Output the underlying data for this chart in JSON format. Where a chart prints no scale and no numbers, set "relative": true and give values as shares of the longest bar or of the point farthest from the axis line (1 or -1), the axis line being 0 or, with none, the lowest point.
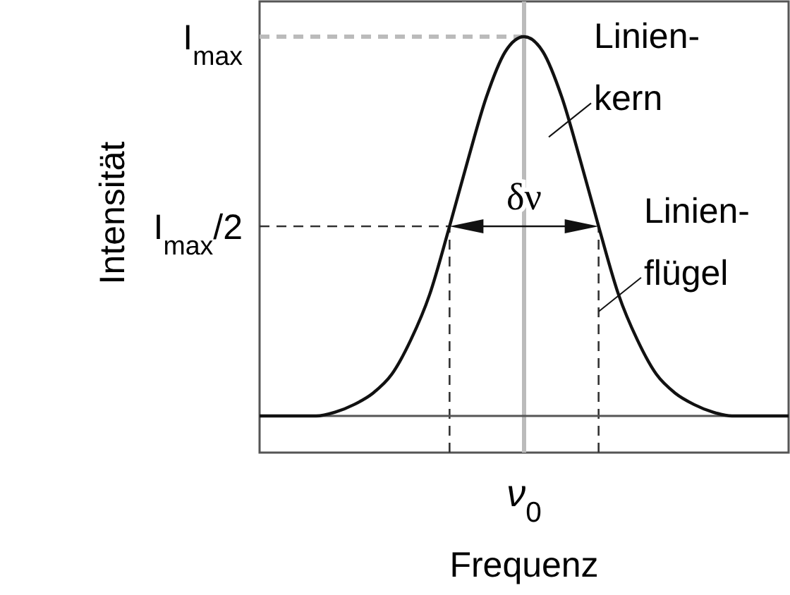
{
  "chart_data": {
    "type": "line",
    "relative": true,
    "xlabel": "Frequenz",
    "ylabel": "Intensität",
    "categories": [
      null,
      null,
      null,
      null,
      null,
      null,
      null,
      null,
      null,
      null,
      null,
      null,
      null,
      null,
      null,
      null,
      null,
      null,
      null,
      null,
      null,
      null,
      null,
      null,
      null,
      null,
      null,
      null,
      null
    ],
    "series": [
      {
        "color": "#111111",
        "values": [
          0,
          0,
          0,
          0,
          0.01,
          0.03,
          0.06,
          0.11,
          0.2,
          0.32,
          0.49,
          0.67,
          0.84,
          0.96,
          1,
          0.96,
          0.84,
          0.67,
          0.49,
          0.32,
          0.2,
          0.11,
          0.06,
          0.03,
          0.01,
          0,
          0,
          0,
          0
        ]
      }
    ],
    "marker": "none",
    "line_style": "solid",
    "ref_lines": [
      {
        "axis": "y",
        "value": 1,
        "label": "I$_{max}$",
        "line_style": "dashed",
        "color": "#bbbbbb"
      },
      {
        "axis": "y",
        "value": 0.5,
        "label": "I$_{max}$/2",
        "line_style": "dashed",
        "color": "#333333"
      }
    ],
    "annotations": [
      "ν$_{0}$",
      "δν",
      "Linien-\nkern",
      "Linien-\nflügel"
    ]
  }
}
